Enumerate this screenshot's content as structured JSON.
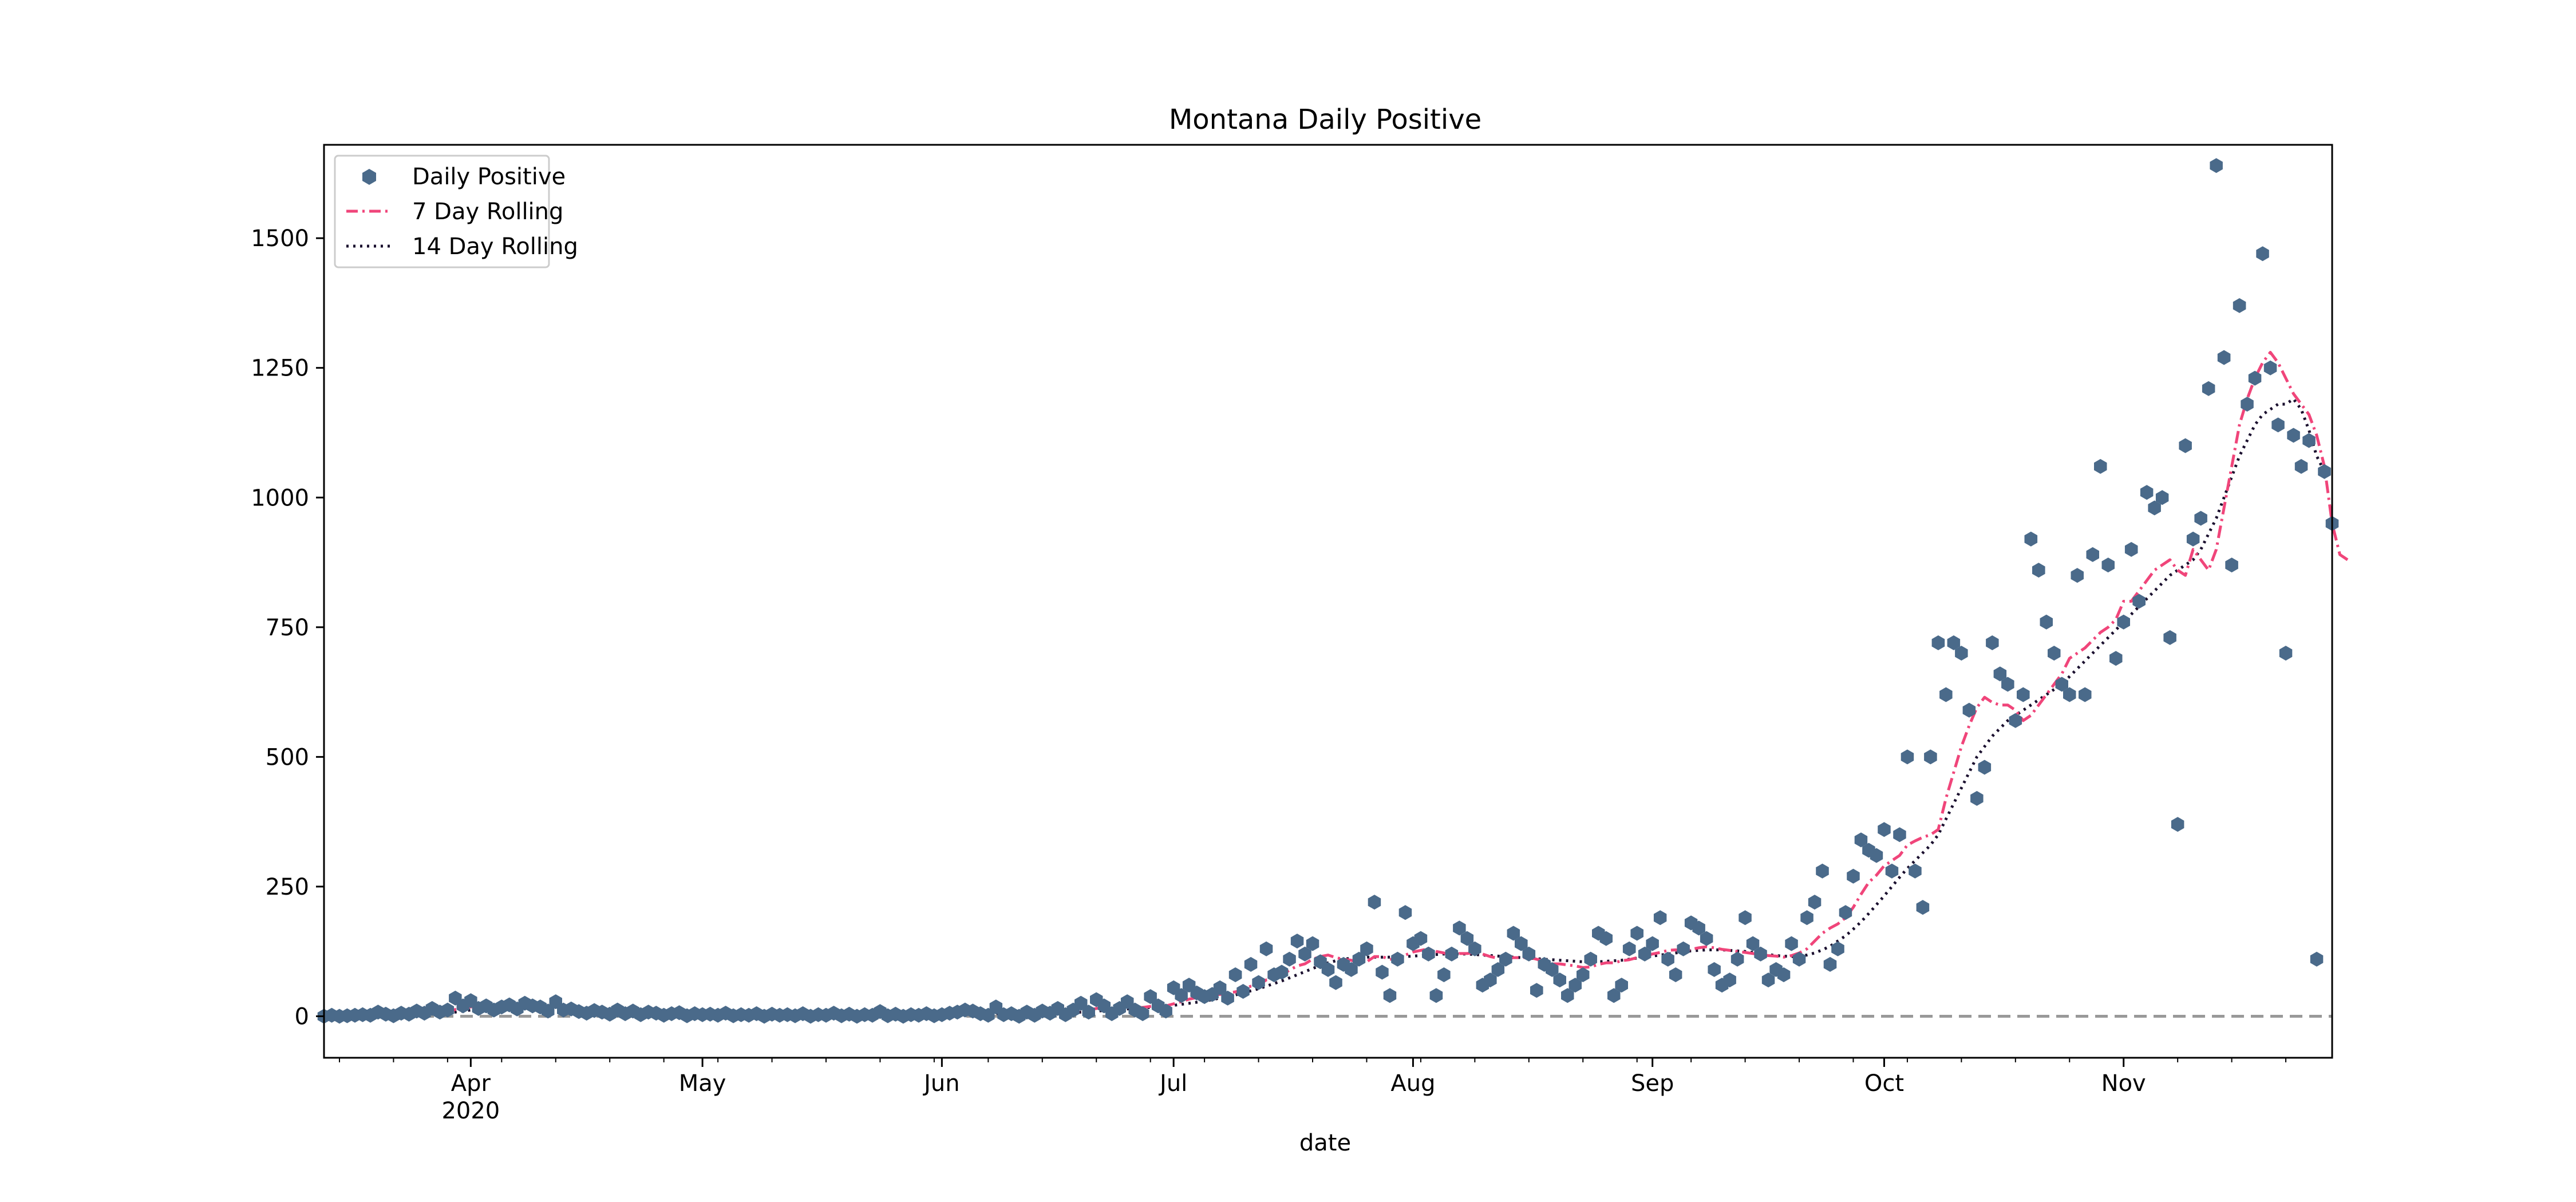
{
  "chart_data": {
    "type": "line",
    "title": "Montana Daily Positive",
    "xlabel": "date",
    "ylabel": "",
    "x_start": "2020-03-13",
    "x_end": "2020-11-28",
    "xlim": [
      "2020-03-13",
      "2020-11-28"
    ],
    "ylim": [
      -80,
      1680
    ],
    "yticks": [
      0,
      250,
      500,
      750,
      1000,
      1250,
      1500
    ],
    "xticks": [
      {
        "date": "2020-04-01",
        "label": "Apr",
        "sublabel": "2020"
      },
      {
        "date": "2020-05-01",
        "label": "May",
        "sublabel": ""
      },
      {
        "date": "2020-06-01",
        "label": "Jun",
        "sublabel": ""
      },
      {
        "date": "2020-07-01",
        "label": "Jul",
        "sublabel": ""
      },
      {
        "date": "2020-08-01",
        "label": "Aug",
        "sublabel": ""
      },
      {
        "date": "2020-09-01",
        "label": "Sep",
        "sublabel": ""
      },
      {
        "date": "2020-10-01",
        "label": "Oct",
        "sublabel": ""
      },
      {
        "date": "2020-11-01",
        "label": "Nov",
        "sublabel": ""
      }
    ],
    "grid": false,
    "legend_position": "top-left",
    "reference_line": {
      "y": 0,
      "style": "dashed",
      "color": "#999999"
    },
    "series": [
      {
        "name": "Daily Positive",
        "style": "markers",
        "marker": "hexagon",
        "color": "#4a6a8a",
        "values": [
          0,
          2,
          0,
          1,
          2,
          3,
          2,
          8,
          4,
          1,
          6,
          4,
          10,
          6,
          15,
          8,
          12,
          35,
          20,
          30,
          15,
          20,
          12,
          18,
          22,
          14,
          25,
          20,
          18,
          10,
          28,
          12,
          14,
          9,
          6,
          11,
          8,
          4,
          12,
          5,
          10,
          3,
          8,
          6,
          2,
          5,
          7,
          1,
          5,
          3,
          4,
          2,
          6,
          1,
          3,
          2,
          5,
          0,
          4,
          2,
          3,
          1,
          5,
          0,
          3,
          2,
          6,
          1,
          4,
          0,
          3,
          2,
          9,
          1,
          4,
          0,
          3,
          2,
          5,
          1,
          3,
          6,
          8,
          12,
          10,
          5,
          2,
          18,
          3,
          5,
          0,
          8,
          2,
          10,
          6,
          15,
          3,
          12,
          25,
          8,
          32,
          20,
          5,
          15,
          28,
          12,
          5,
          38,
          20,
          10,
          55,
          40,
          60,
          45,
          38,
          42,
          55,
          35,
          80,
          48,
          100,
          65,
          130,
          80,
          85,
          110,
          145,
          120,
          140,
          105,
          90,
          65,
          100,
          90,
          110,
          130,
          220,
          85,
          40,
          110,
          200,
          140,
          150,
          120,
          40,
          80,
          120,
          170,
          150,
          130,
          60,
          70,
          90,
          110,
          160,
          140,
          120,
          50,
          100,
          90,
          70,
          40,
          60,
          80,
          110,
          160,
          150,
          40,
          60,
          130,
          160,
          120,
          140,
          190,
          110,
          80,
          130,
          180,
          170,
          150,
          90,
          60,
          70,
          110,
          190,
          140,
          120,
          70,
          90,
          80,
          140,
          110,
          190,
          220,
          280,
          100,
          130,
          200,
          270,
          340,
          320,
          310,
          360,
          280,
          350,
          500,
          280,
          210,
          500,
          720,
          620,
          720,
          700,
          590,
          420,
          480,
          720,
          660,
          640,
          570,
          620,
          920,
          860,
          760,
          700,
          640,
          620,
          850,
          620,
          890,
          1060,
          870,
          690,
          760,
          900,
          800,
          1010,
          980,
          1000,
          730,
          370,
          1100,
          920,
          960,
          1210,
          1640,
          1270,
          870,
          1370,
          1180,
          1230,
          1470,
          1250,
          1140,
          700,
          1120,
          1060,
          1110,
          110,
          1050,
          950
        ]
      },
      {
        "name": "7 Day Rolling",
        "style": "dashdot",
        "color": "#f0457a",
        "values": [
          0,
          0,
          0,
          0,
          1,
          1,
          1,
          3,
          3,
          3,
          4,
          4,
          5,
          5,
          8,
          8,
          9,
          13,
          15,
          18,
          20,
          22,
          22,
          21,
          21,
          20,
          20,
          19,
          18,
          17,
          18,
          17,
          16,
          15,
          14,
          13,
          12,
          9,
          9,
          8,
          8,
          7,
          7,
          6,
          5,
          5,
          5,
          4,
          4,
          4,
          3,
          3,
          4,
          3,
          3,
          3,
          3,
          2,
          3,
          2,
          2,
          2,
          3,
          1,
          2,
          2,
          3,
          2,
          2,
          2,
          2,
          2,
          3,
          2,
          2,
          2,
          2,
          2,
          3,
          2,
          3,
          3,
          4,
          6,
          7,
          7,
          7,
          9,
          8,
          8,
          6,
          6,
          6,
          5,
          5,
          7,
          6,
          8,
          11,
          12,
          15,
          17,
          17,
          17,
          20,
          17,
          17,
          19,
          21,
          20,
          24,
          28,
          33,
          36,
          37,
          41,
          42,
          45,
          47,
          51,
          58,
          61,
          70,
          73,
          79,
          89,
          97,
          101,
          110,
          115,
          118,
          113,
          110,
          108,
          103,
          105,
          115,
          115,
          110,
          110,
          118,
          124,
          127,
          130,
          125,
          122,
          117,
          121,
          121,
          123,
          120,
          115,
          112,
          110,
          113,
          113,
          114,
          110,
          106,
          101,
          101,
          99,
          97,
          94,
          95,
          100,
          103,
          103,
          107,
          109,
          113,
          116,
          120,
          123,
          127,
          128,
          126,
          129,
          132,
          134,
          132,
          129,
          127,
          125,
          123,
          121,
          119,
          117,
          116,
          114,
          117,
          122,
          130,
          145,
          160,
          170,
          178,
          190,
          210,
          235,
          258,
          272,
          290,
          300,
          310,
          330,
          338,
          345,
          350,
          360,
          420,
          470,
          520,
          560,
          595,
          615,
          605,
          600,
          600,
          590,
          570,
          580,
          600,
          620,
          640,
          660,
          690,
          700,
          710,
          725,
          740,
          750,
          765,
          800,
          800,
          820,
          840,
          860,
          870,
          880,
          860,
          850,
          900,
          880,
          860,
          900,
          980,
          1060,
          1140,
          1190,
          1230,
          1260,
          1280,
          1260,
          1230,
          1200,
          1180,
          1160,
          1120,
          1060,
          950,
          890,
          880
        ]
      },
      {
        "name": "14 Day Rolling",
        "style": "dotted",
        "color": "#1a0f2e",
        "values": [
          0,
          0,
          0,
          0,
          0,
          1,
          1,
          1,
          2,
          2,
          2,
          3,
          3,
          4,
          5,
          6,
          7,
          8,
          10,
          12,
          13,
          14,
          15,
          16,
          16,
          17,
          17,
          17,
          17,
          17,
          17,
          17,
          16,
          16,
          15,
          15,
          14,
          13,
          12,
          11,
          11,
          10,
          9,
          9,
          8,
          7,
          7,
          6,
          6,
          5,
          5,
          5,
          4,
          4,
          4,
          3,
          3,
          3,
          3,
          3,
          3,
          2,
          2,
          2,
          2,
          2,
          2,
          2,
          2,
          2,
          2,
          2,
          2,
          2,
          2,
          2,
          2,
          2,
          2,
          2,
          2,
          3,
          3,
          3,
          4,
          4,
          5,
          5,
          5,
          6,
          6,
          6,
          6,
          6,
          6,
          6,
          6,
          7,
          8,
          9,
          10,
          11,
          12,
          13,
          14,
          15,
          16,
          17,
          18,
          19,
          21,
          23,
          25,
          27,
          29,
          32,
          35,
          38,
          41,
          45,
          49,
          53,
          58,
          63,
          68,
          74,
          80,
          86,
          92,
          98,
          103,
          107,
          110,
          112,
          113,
          114,
          114,
          114,
          114,
          114,
          115,
          116,
          117,
          118,
          119,
          120,
          120,
          120,
          120,
          119,
          118,
          117,
          116,
          115,
          114,
          113,
          112,
          111,
          110,
          109,
          108,
          107,
          106,
          105,
          105,
          105,
          106,
          107,
          108,
          110,
          112,
          114,
          116,
          118,
          120,
          122,
          124,
          126,
          127,
          128,
          128,
          128,
          127,
          126,
          125,
          123,
          121,
          119,
          117,
          116,
          115,
          116,
          118,
          122,
          128,
          135,
          145,
          155,
          168,
          182,
          198,
          215,
          232,
          250,
          268,
          285,
          300,
          315,
          330,
          350,
          380,
          410,
          440,
          470,
          500,
          520,
          540,
          555,
          570,
          580,
          590,
          600,
          610,
          620,
          630,
          640,
          655,
          670,
          685,
          700,
          715,
          730,
          745,
          760,
          775,
          790,
          805,
          820,
          835,
          850,
          860,
          870,
          880,
          900,
          930,
          960,
          1000,
          1040,
          1080,
          1110,
          1140,
          1160,
          1170,
          1180,
          1180,
          1190,
          1170,
          1130,
          1080,
          1050
        ]
      }
    ]
  }
}
